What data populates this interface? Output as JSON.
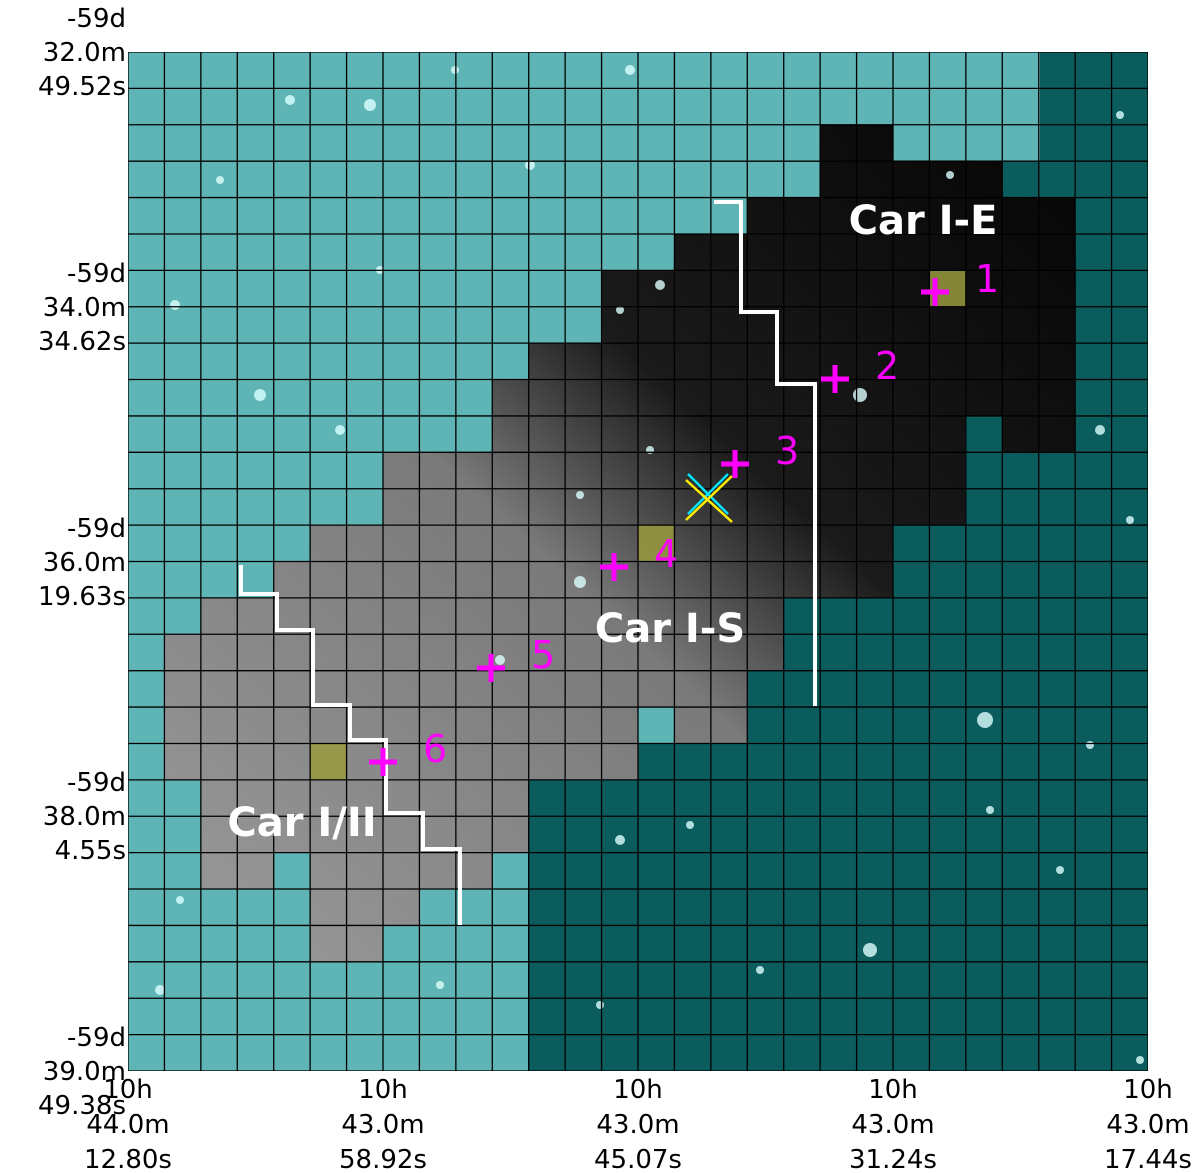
{
  "y_ticks": [
    {
      "lines": [
        "-59d",
        "32.0m",
        "49.52s"
      ]
    },
    {
      "lines": [
        "-59d",
        "34.0m",
        "34.62s"
      ]
    },
    {
      "lines": [
        "-59d",
        "36.0m",
        "19.63s"
      ]
    },
    {
      "lines": [
        "-59d",
        "38.0m",
        "4.55s"
      ]
    },
    {
      "lines": [
        "-59d",
        "39.0m",
        "49.38s"
      ]
    }
  ],
  "x_ticks": [
    {
      "lines": [
        "10h",
        "44.0m",
        "12.80s"
      ]
    },
    {
      "lines": [
        "10h",
        "43.0m",
        "58.92s"
      ]
    },
    {
      "lines": [
        "10h",
        "43.0m",
        "45.07s"
      ]
    },
    {
      "lines": [
        "10h",
        "43.0m",
        "31.24s"
      ]
    },
    {
      "lines": [
        "10h",
        "43.0m",
        "17.44s"
      ]
    }
  ],
  "regions": [
    "Car I-E",
    "Car I-S",
    "Car I/II"
  ],
  "markers": [
    "1",
    "2",
    "3",
    "4",
    "5",
    "6"
  ]
}
